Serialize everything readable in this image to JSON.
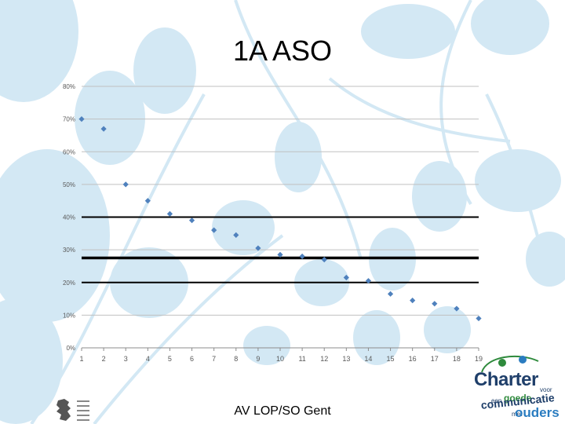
{
  "slide": {
    "title": "1A ASO",
    "footer": "AV LOP/SO Gent"
  },
  "logos": {
    "left_icon": "flemish-government-lion-icon",
    "right_logo_text": {
      "main": "Charter",
      "word_voor": "voor",
      "word_een": "een",
      "word_goede": "goede",
      "word_communicatie": "communicatie",
      "word_met": "met",
      "word_ouders": "ouders"
    }
  },
  "colors": {
    "background_art": "#d3e8f4",
    "marker": "#4f81bd",
    "grid": "#c0c0c0",
    "reference_line": "#000000"
  },
  "chart_data": {
    "type": "scatter",
    "title": "",
    "xlabel": "",
    "ylabel": "",
    "x": [
      1,
      2,
      3,
      4,
      5,
      6,
      7,
      8,
      9,
      10,
      11,
      12,
      13,
      14,
      15,
      16,
      17,
      18,
      19
    ],
    "y": [
      0.7,
      0.67,
      0.5,
      0.45,
      0.41,
      0.39,
      0.36,
      0.345,
      0.305,
      0.285,
      0.28,
      0.27,
      0.215,
      0.205,
      0.165,
      0.145,
      0.135,
      0.12,
      0.09
    ],
    "xlim": [
      1,
      19
    ],
    "ylim": [
      0,
      0.8
    ],
    "x_ticks": [
      "1",
      "2",
      "3",
      "4",
      "5",
      "6",
      "7",
      "8",
      "9",
      "10",
      "11",
      "12",
      "13",
      "14",
      "15",
      "16",
      "17",
      "18",
      "19"
    ],
    "y_ticks": [
      "0%",
      "10%",
      "20%",
      "30%",
      "40%",
      "50%",
      "60%",
      "70%",
      "80%"
    ],
    "y_tick_values": [
      0,
      0.1,
      0.2,
      0.3,
      0.4,
      0.5,
      0.6,
      0.7,
      0.8
    ],
    "reference_lines": [
      {
        "y": 0.4,
        "weight": "normal"
      },
      {
        "y": 0.275,
        "weight": "thick"
      },
      {
        "y": 0.2,
        "weight": "normal"
      }
    ],
    "marker": "diamond",
    "grid": true,
    "legend": "none"
  }
}
